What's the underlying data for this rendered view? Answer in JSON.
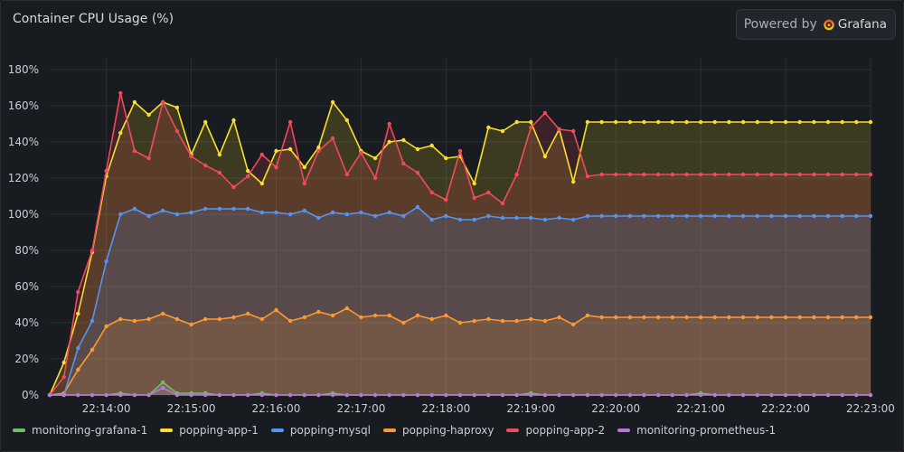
{
  "panel": {
    "title": "Container CPU Usage (%)",
    "powered_by": "Powered by",
    "brand": "Grafana"
  },
  "chart_data": {
    "type": "area",
    "title": "Container CPU Usage (%)",
    "y_unit": "%",
    "ylim": [
      0,
      180
    ],
    "y_ticks": [
      0,
      20,
      40,
      60,
      80,
      100,
      120,
      140,
      160,
      180
    ],
    "y_tick_labels": [
      "0%",
      "20%",
      "40%",
      "60%",
      "80%",
      "100%",
      "120%",
      "140%",
      "160%",
      "180%"
    ],
    "x_tick_labels": [
      "22:14:00",
      "22:15:00",
      "22:16:00",
      "22:17:00",
      "22:18:00",
      "22:19:00",
      "22:20:00",
      "22:21:00",
      "22:22:00",
      "22:23:00"
    ],
    "x_tick_indices": [
      4,
      10,
      16,
      22,
      28,
      34,
      40,
      46,
      52,
      58
    ],
    "x_count": 59,
    "grid": true,
    "legend_position": "bottom",
    "series": [
      {
        "name": "monitoring-grafana-1",
        "color": "#73bf69",
        "values": [
          0,
          0,
          0,
          0,
          0,
          1,
          0,
          0,
          7,
          1,
          1,
          1,
          0,
          0,
          0,
          1,
          0,
          0,
          0,
          0,
          1,
          0,
          0,
          0,
          0,
          0,
          0,
          0,
          0,
          0,
          0,
          0,
          0,
          0,
          1,
          0,
          0,
          0,
          0,
          0,
          0,
          0,
          0,
          0,
          0,
          0,
          1,
          0,
          0,
          0,
          0,
          0,
          0,
          0,
          0,
          0,
          0,
          0,
          0
        ]
      },
      {
        "name": "popping-app-1",
        "color": "#fade2a",
        "values": [
          0,
          18,
          45,
          79,
          121,
          145,
          162,
          155,
          162,
          159,
          133,
          151,
          133,
          152,
          124,
          117,
          135,
          136,
          126,
          137,
          162,
          152,
          135,
          131,
          140,
          141,
          136,
          138,
          131,
          132,
          117,
          148,
          146,
          151,
          151,
          132,
          147,
          118,
          151,
          151,
          151,
          151,
          151,
          151,
          151,
          151,
          151,
          151,
          151,
          151,
          151,
          151,
          151,
          151,
          151,
          151,
          151,
          151,
          151
        ]
      },
      {
        "name": "popping-mysql",
        "color": "#5794f2",
        "values": [
          0,
          0,
          26,
          41,
          74,
          100,
          103,
          99,
          102,
          100,
          101,
          103,
          103,
          103,
          103,
          101,
          101,
          100,
          102,
          98,
          101,
          100,
          101,
          99,
          101,
          99,
          104,
          97,
          99,
          97,
          97,
          99,
          98,
          98,
          98,
          97,
          98,
          97,
          99,
          99,
          99,
          99,
          99,
          99,
          99,
          99,
          99,
          99,
          99,
          99,
          99,
          99,
          99,
          99,
          99,
          99,
          99,
          99,
          99
        ]
      },
      {
        "name": "popping-haproxy",
        "color": "#ff9830",
        "values": [
          0,
          1,
          14,
          25,
          38,
          42,
          41,
          42,
          45,
          42,
          39,
          42,
          42,
          43,
          45,
          42,
          47,
          41,
          43,
          46,
          44,
          48,
          43,
          44,
          44,
          40,
          44,
          42,
          44,
          40,
          41,
          42,
          41,
          41,
          42,
          41,
          43,
          39,
          44,
          43,
          43,
          43,
          43,
          43,
          43,
          43,
          43,
          43,
          43,
          43,
          43,
          43,
          43,
          43,
          43,
          43,
          43,
          43,
          43
        ]
      },
      {
        "name": "popping-app-2",
        "color": "#f2495c",
        "values": [
          0,
          10,
          57,
          80,
          124,
          167,
          135,
          131,
          162,
          146,
          132,
          127,
          123,
          115,
          121,
          133,
          126,
          151,
          117,
          135,
          142,
          122,
          134,
          120,
          150,
          128,
          123,
          112,
          108,
          135,
          109,
          112,
          106,
          122,
          148,
          156,
          147,
          146,
          121,
          122,
          122,
          122,
          122,
          122,
          122,
          122,
          122,
          122,
          122,
          122,
          122,
          122,
          122,
          122,
          122,
          122,
          122,
          122,
          122
        ]
      },
      {
        "name": "monitoring-prometheus-1",
        "color": "#b877d9",
        "values": [
          0,
          0,
          0,
          0,
          0,
          0,
          0,
          0,
          4,
          0,
          0,
          0,
          0,
          0,
          0,
          0,
          0,
          0,
          0,
          0,
          0,
          0,
          0,
          0,
          0,
          0,
          0,
          0,
          0,
          0,
          0,
          0,
          0,
          0,
          0,
          0,
          0,
          0,
          0,
          0,
          0,
          0,
          0,
          0,
          0,
          0,
          0,
          0,
          0,
          0,
          0,
          0,
          0,
          0,
          0,
          0,
          0,
          0,
          0
        ]
      }
    ]
  }
}
